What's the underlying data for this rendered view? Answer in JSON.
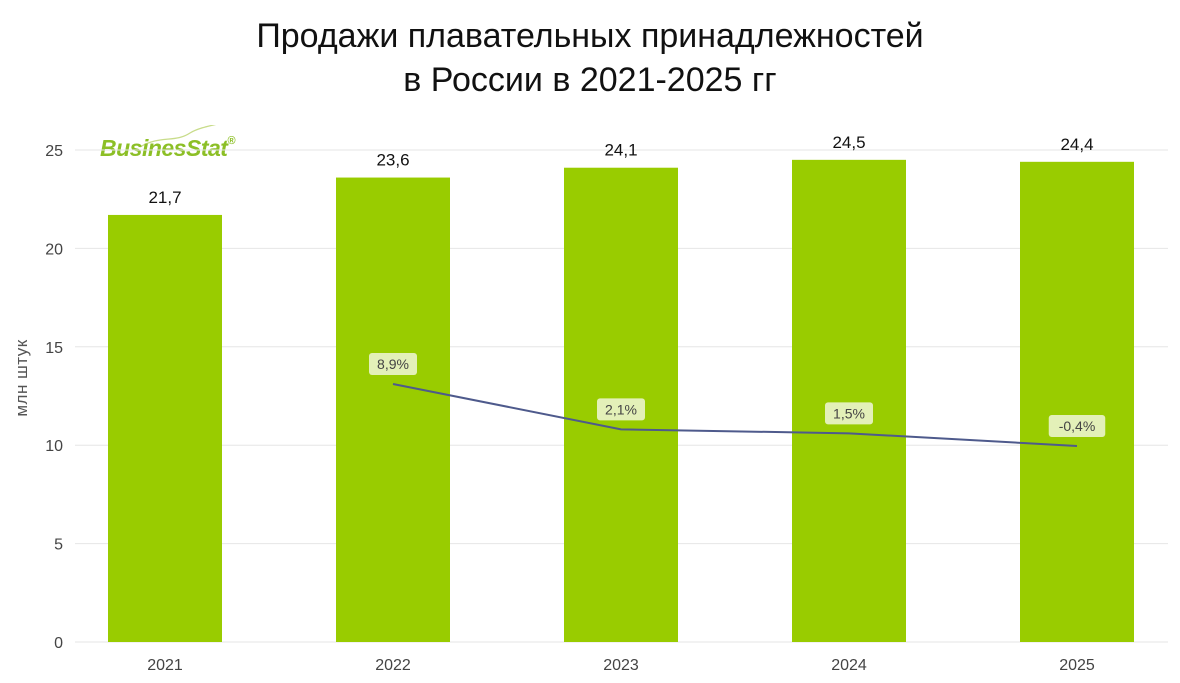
{
  "title": {
    "line1": "Продажи плавательных принадлежностей",
    "line2": "в России в 2021-2025 гг"
  },
  "logo": {
    "text": "BusinesStat",
    "reg": "®"
  },
  "colors": {
    "bar": "#99cc00",
    "line": "#4e5a8c",
    "growth_label_bg": "#e3f0b8",
    "grid": "#e6e6e6"
  },
  "chart_data": {
    "type": "bar",
    "categories": [
      "2021",
      "2022",
      "2023",
      "2024",
      "2025"
    ],
    "series": [
      {
        "values": [
          21.7,
          23.6,
          24.1,
          24.5,
          24.4
        ],
        "labels": [
          "21,7",
          "23,6",
          "24,1",
          "24,5",
          "24,4"
        ]
      }
    ],
    "growth_line": {
      "categories": [
        "2022",
        "2023",
        "2024",
        "2025"
      ],
      "values": [
        8.9,
        2.1,
        1.5,
        -0.4
      ],
      "labels": [
        "8,9%",
        "2,1%",
        "1,5%",
        "-0,4%"
      ]
    },
    "ylabel": "млн штук",
    "ylim": [
      0,
      25
    ],
    "yticks": [
      0,
      5,
      10,
      15,
      20,
      25
    ],
    "grid": true,
    "legend": "none"
  }
}
